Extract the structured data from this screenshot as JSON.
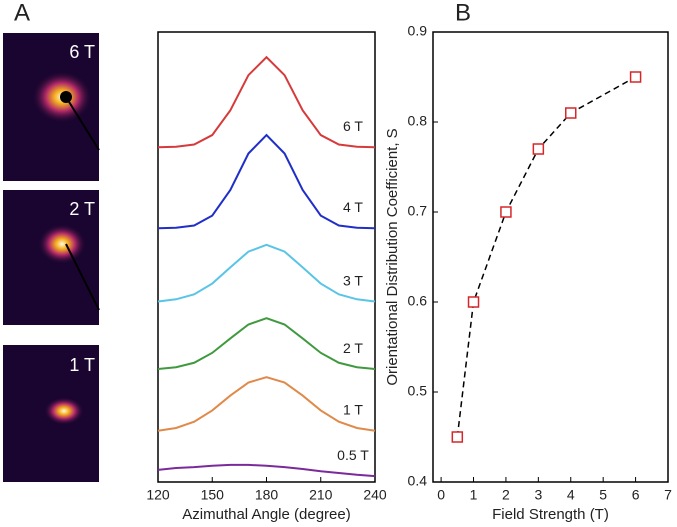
{
  "panel_labels": [
    "A",
    "B"
  ],
  "images": [
    {
      "label": "6 T"
    },
    {
      "label": "2 T"
    },
    {
      "label": "1 T"
    }
  ],
  "chart_data": [
    {
      "type": "line",
      "xlabel": "Azimuthal Angle (degree)",
      "x": [
        120,
        130,
        140,
        150,
        160,
        170,
        180,
        190,
        200,
        210,
        220,
        230,
        240
      ],
      "xlim": [
        120,
        240
      ],
      "xticks": [
        120,
        150,
        180,
        210,
        240
      ],
      "ylim": [
        0,
        10
      ],
      "series": [
        {
          "name": "6 T",
          "color": "#d63a3a",
          "values": [
            7.44,
            7.45,
            7.5,
            7.71,
            8.26,
            9.04,
            9.44,
            9.04,
            8.26,
            7.71,
            7.5,
            7.45,
            7.44
          ]
        },
        {
          "name": "4 T",
          "color": "#1f2fc8",
          "values": [
            5.64,
            5.65,
            5.7,
            5.92,
            6.49,
            7.3,
            7.71,
            7.3,
            6.49,
            5.92,
            5.7,
            5.65,
            5.64
          ]
        },
        {
          "name": "3 T",
          "color": "#5ac4e6",
          "values": [
            4.01,
            4.06,
            4.17,
            4.41,
            4.77,
            5.12,
            5.27,
            5.12,
            4.77,
            4.41,
            4.17,
            4.06,
            4.01
          ]
        },
        {
          "name": "2 T",
          "color": "#3f9a3f",
          "values": [
            2.51,
            2.55,
            2.65,
            2.87,
            3.19,
            3.5,
            3.64,
            3.5,
            3.19,
            2.87,
            2.65,
            2.55,
            2.51
          ]
        },
        {
          "name": "1 T",
          "color": "#e08a4a",
          "values": [
            1.14,
            1.2,
            1.34,
            1.59,
            1.92,
            2.21,
            2.33,
            2.21,
            1.92,
            1.59,
            1.34,
            1.2,
            1.14
          ]
        },
        {
          "name": "0.5 T",
          "color": "#7a2a9a",
          "values": [
            0.27,
            0.31,
            0.33,
            0.36,
            0.38,
            0.38,
            0.36,
            0.33,
            0.29,
            0.24,
            0.2,
            0.16,
            0.13
          ]
        }
      ]
    },
    {
      "type": "scatter",
      "xlabel": "Field Strength (T)",
      "ylabel": "Orientational Distribution Coefficient, S",
      "x": [
        0.5,
        1,
        2,
        3,
        4,
        6
      ],
      "values": [
        0.45,
        0.6,
        0.7,
        0.77,
        0.81,
        0.85
      ],
      "color": "#d62728",
      "marker": "square",
      "line_style": "dashed",
      "xlim": [
        -0.25,
        7
      ],
      "xticks": [
        0,
        1,
        2,
        3,
        4,
        5,
        6,
        7
      ],
      "ylim": [
        0.4,
        0.9
      ],
      "yticks": [
        0.4,
        0.5,
        0.6,
        0.7,
        0.8,
        0.9
      ]
    }
  ]
}
